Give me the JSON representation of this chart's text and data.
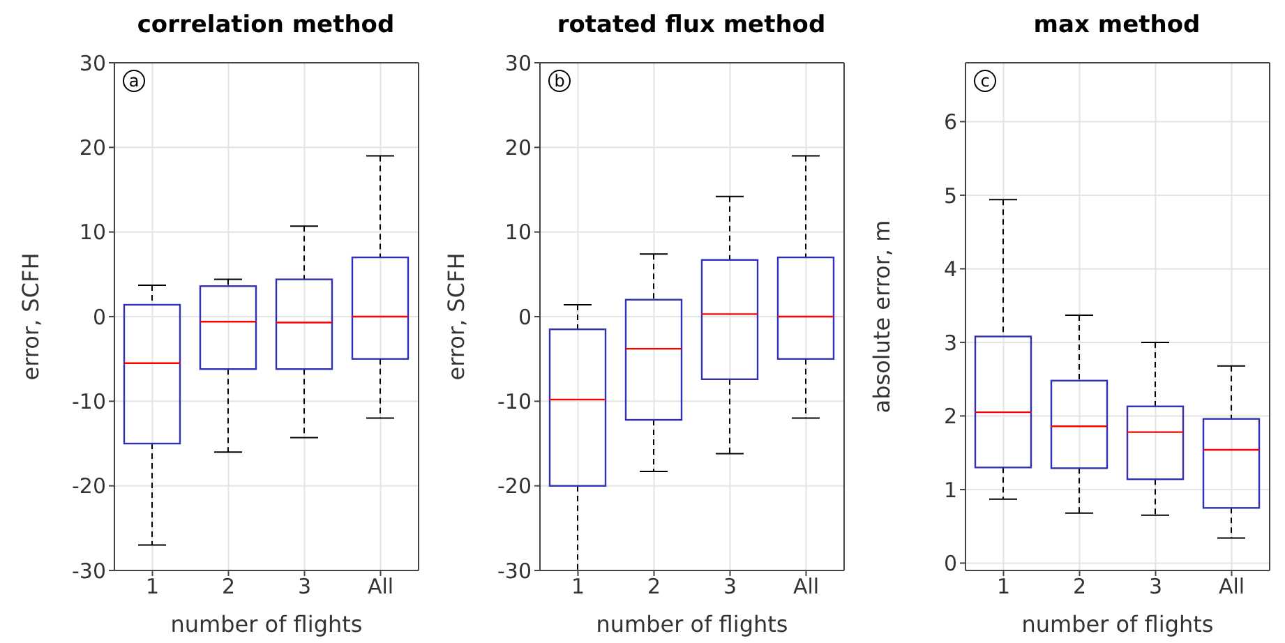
{
  "chart_data": [
    {
      "type": "box",
      "title": "correlation method",
      "xlabel": "number of flights",
      "ylabel": "error, SCFH",
      "categories": [
        "1",
        "2",
        "3",
        "All"
      ],
      "ylim": [
        -30,
        30
      ],
      "yticks": [
        -30,
        -20,
        -10,
        0,
        10,
        20,
        30
      ],
      "grid": true,
      "annotations": [
        "a"
      ],
      "series": [
        {
          "color": "#3030b0",
          "boxes": [
            {
              "low": -27,
              "q1": -15,
              "median": -5.5,
              "q3": 1.4,
              "high": 3.7
            },
            {
              "low": -16,
              "q1": -6.2,
              "median": -0.6,
              "q3": 3.6,
              "high": 4.4
            },
            {
              "low": -14.3,
              "q1": -6.2,
              "median": -0.7,
              "q3": 4.4,
              "high": 10.7
            },
            {
              "low": -12,
              "q1": -5,
              "median": 0,
              "q3": 7,
              "high": 19
            }
          ]
        }
      ]
    },
    {
      "type": "box",
      "title": "rotated flux method",
      "xlabel": "number of flights",
      "ylabel": "error, SCFH",
      "categories": [
        "1",
        "2",
        "3",
        "All"
      ],
      "ylim": [
        -30,
        30
      ],
      "yticks": [
        -30,
        -20,
        -10,
        0,
        10,
        20,
        30
      ],
      "grid": true,
      "annotations": [
        "b"
      ],
      "series": [
        {
          "color": "#3030b0",
          "boxes": [
            {
              "low": -30,
              "q1": -20,
              "median": -9.8,
              "q3": -1.5,
              "high": 1.4
            },
            {
              "low": -18.3,
              "q1": -12.2,
              "median": -3.8,
              "q3": 2,
              "high": 7.4
            },
            {
              "low": -16.2,
              "q1": -7.4,
              "median": 0.3,
              "q3": 6.7,
              "high": 14.2
            },
            {
              "low": -12,
              "q1": -5,
              "median": 0,
              "q3": 7,
              "high": 19
            }
          ]
        }
      ]
    },
    {
      "type": "box",
      "title": "max method",
      "xlabel": "number of flights",
      "ylabel": "absolute error, m",
      "categories": [
        "1",
        "2",
        "3",
        "All"
      ],
      "ylim": [
        -0.1,
        6.8
      ],
      "yticks": [
        0,
        1,
        2,
        3,
        4,
        5,
        6
      ],
      "grid": true,
      "annotations": [
        "c"
      ],
      "series": [
        {
          "color": "#3030b0",
          "boxes": [
            {
              "low": 0.87,
              "q1": 1.3,
              "median": 2.05,
              "q3": 3.08,
              "high": 4.94
            },
            {
              "low": 0.68,
              "q1": 1.29,
              "median": 1.86,
              "q3": 2.48,
              "high": 3.37
            },
            {
              "low": 0.65,
              "q1": 1.14,
              "median": 1.78,
              "q3": 2.13,
              "high": 3.0
            },
            {
              "low": 0.34,
              "q1": 0.75,
              "median": 1.54,
              "q3": 1.96,
              "high": 2.68
            }
          ]
        }
      ]
    }
  ]
}
